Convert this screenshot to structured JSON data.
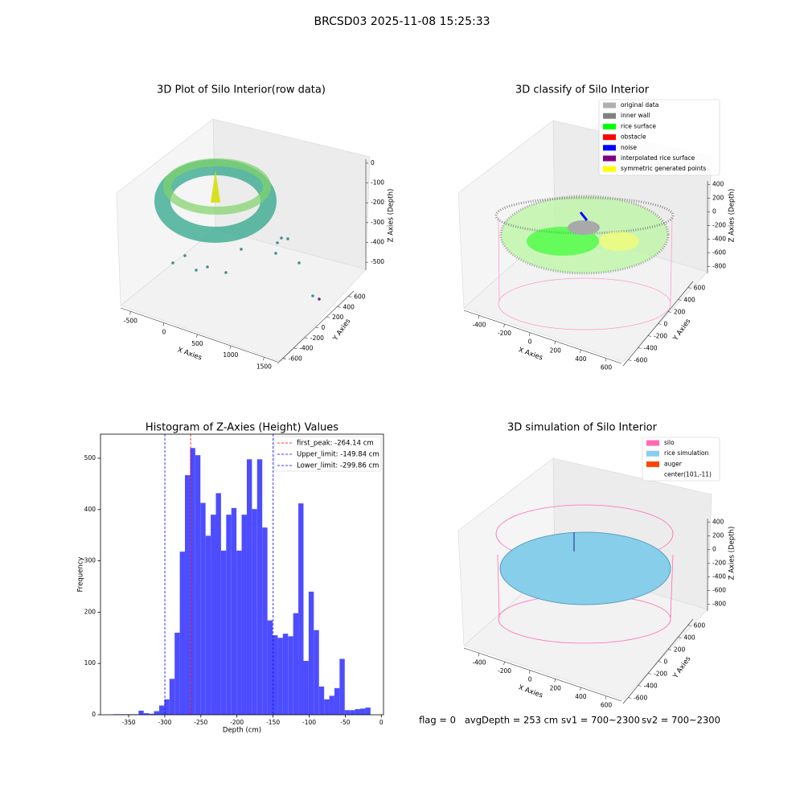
{
  "suptitle": "BRCSD03 2025-11-08 15:25:33",
  "chart_data": [
    {
      "type": "scatter3d",
      "title": "3D Plot of Silo Interior(row data)",
      "xlabel": "X Axies",
      "ylabel": "Y Axies",
      "zlabel": "Z Axies (Depth)",
      "xlim": [
        -650,
        1700
      ],
      "ylim": [
        -700,
        700
      ],
      "zlim": [
        -540,
        20
      ],
      "xticks": [
        -500,
        0,
        500,
        1000,
        1500
      ],
      "yticks": [
        -600,
        -400,
        -200,
        0,
        200,
        400,
        600
      ],
      "zticks": [
        -500,
        -400,
        -300,
        -200,
        -100,
        0
      ]
    },
    {
      "type": "scatter3d",
      "title": "3D classify of Silo Interior",
      "xlabel": "X Axies",
      "ylabel": "Y Axies",
      "zlabel": "Z Axies (Depth)",
      "xlim": [
        -520,
        720
      ],
      "ylim": [
        -700,
        700
      ],
      "zlim": [
        -900,
        450
      ],
      "xticks": [
        -400,
        -200,
        0,
        200,
        400,
        600
      ],
      "yticks": [
        -600,
        -400,
        -200,
        0,
        200,
        400,
        600
      ],
      "zticks": [
        -800,
        -600,
        -400,
        -200,
        0,
        200,
        400
      ],
      "legend": [
        {
          "name": "original data",
          "color": "#b0b0b0"
        },
        {
          "name": "inner wall",
          "color": "#808080"
        },
        {
          "name": "rice surface",
          "color": "#00ff00"
        },
        {
          "name": "obstacle",
          "color": "#ff0000"
        },
        {
          "name": "noise",
          "color": "#0000ff"
        },
        {
          "name": "interpolated rice surface",
          "color": "#800080"
        },
        {
          "name": "symmetric generated points",
          "color": "#ffff00"
        }
      ]
    },
    {
      "type": "histogram",
      "title": "Histogram of Z-Axies (Height) Values",
      "xlabel": "Depth (cm)",
      "ylabel": "Frequency",
      "color": "#4d4dff",
      "bins": [
        -372,
        -364.86,
        -357.72,
        -350.58,
        -343.44,
        -336.3,
        -329.16,
        -322.02,
        -314.88,
        -307.74,
        -300.6,
        -293.46,
        -286.32,
        -279.18,
        -272.04,
        -264.9,
        -257.76,
        -250.62,
        -243.48,
        -236.34,
        -229.2,
        -222.06,
        -214.92,
        -207.78,
        -200.64,
        -193.5,
        -186.36,
        -179.22,
        -172.08,
        -164.94,
        -157.8,
        -150.66,
        -143.52,
        -136.38,
        -129.24,
        -122.1,
        -114.96,
        -107.82,
        -100.68,
        -93.54,
        -86.4,
        -79.26,
        -72.12,
        -64.98,
        -57.84,
        -50.7,
        -43.56,
        -36.42,
        -29.28,
        -22.14,
        -15
      ],
      "counts": [
        1,
        1,
        1,
        1,
        1,
        8,
        3,
        2,
        7,
        18,
        30,
        70,
        160,
        318,
        467,
        520,
        506,
        413,
        349,
        390,
        432,
        320,
        390,
        403,
        320,
        390,
        498,
        401,
        498,
        365,
        184,
        155,
        150,
        158,
        153,
        198,
        412,
        105,
        240,
        165,
        55,
        30,
        37,
        52,
        109,
        9,
        9,
        11,
        12,
        14
      ],
      "xlim": [
        -389,
        3
      ],
      "ylim": [
        0,
        547
      ],
      "xticks": [
        -350,
        -300,
        -250,
        -200,
        -150,
        -100,
        -50,
        0
      ],
      "yticks": [
        0,
        100,
        200,
        300,
        400,
        500
      ],
      "vlines": [
        {
          "name": "first_peak: -264.14 cm",
          "value": -264.14,
          "color": "#ff0000"
        },
        {
          "name": "Upper_limit: -149.84 cm",
          "value": -149.84,
          "color": "#0000ff"
        },
        {
          "name": "Lower_limit: -299.86 cm",
          "value": -299.86,
          "color": "#0000ff"
        }
      ]
    },
    {
      "type": "surface3d",
      "title": "3D simulation of Silo Interior",
      "xlabel": "X Axies",
      "ylabel": "Y Axies",
      "zlabel": "Z Axies (Depth)",
      "xlim": [
        -520,
        720
      ],
      "ylim": [
        -700,
        700
      ],
      "zlim": [
        -900,
        450
      ],
      "xticks": [
        -400,
        -200,
        0,
        200,
        400,
        600
      ],
      "yticks": [
        -600,
        -400,
        -200,
        0,
        200,
        400,
        600
      ],
      "zticks": [
        -800,
        -600,
        -400,
        -200,
        0,
        200,
        400
      ],
      "legend": [
        {
          "name": "silo",
          "color": "#ff69b4"
        },
        {
          "name": "rice simulation",
          "color": "#87ceeb"
        },
        {
          "name": "auger",
          "color": "#ff4500"
        },
        {
          "name": "center(101,-11)"
        }
      ]
    }
  ],
  "status": [
    "flag = 0",
    "avgDepth = 253 cm",
    "sv1 = 700~2300",
    "sv2 = 700~2300"
  ]
}
